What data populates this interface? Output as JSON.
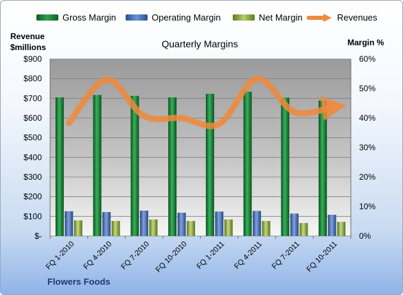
{
  "chart_data": {
    "type": "bar",
    "title": "Quarterly Margins",
    "footer": "Flowers Foods",
    "left_axis_title_line1": "Revenue",
    "left_axis_title_line2": "$millions",
    "right_axis_title": "Margin %",
    "categories": [
      "FQ 1-2010",
      "FQ 4-2010",
      "FQ 7-2010",
      "FQ 10-2010",
      "FQ 1-2011",
      "FQ 4-2011",
      "FQ 7-2011",
      "FQ 10-2011"
    ],
    "left_ticks": [
      "$-",
      "$100",
      "$200",
      "$300",
      "$400",
      "$500",
      "$600",
      "$700",
      "$800",
      "$900"
    ],
    "right_ticks": [
      "0%",
      "10%",
      "20%",
      "30%",
      "40%",
      "50%",
      "60%"
    ],
    "ylim_left": [
      0,
      900
    ],
    "ylim_right": [
      0,
      60
    ],
    "series": [
      {
        "name": "Gross Margin",
        "axis": "right",
        "type": "bar",
        "color": "#1e8a3c",
        "values": [
          47.0,
          47.8,
          47.5,
          47.0,
          48.2,
          48.9,
          46.9,
          45.9
        ]
      },
      {
        "name": "Operating Margin",
        "axis": "right",
        "type": "bar",
        "color": "#4a72b8",
        "values": [
          8.4,
          8.1,
          8.6,
          7.9,
          8.3,
          8.5,
          7.6,
          7.2
        ]
      },
      {
        "name": "Net Margin",
        "axis": "right",
        "type": "bar",
        "color": "#8fac46",
        "values": [
          5.3,
          5.1,
          5.6,
          5.1,
          5.6,
          5.1,
          4.4,
          4.8
        ]
      },
      {
        "name": "Revenues",
        "axis": "left",
        "type": "line",
        "color": "#f08a3c",
        "values": [
          575,
          795,
          610,
          600,
          570,
          800,
          630,
          655
        ]
      }
    ],
    "grid": true
  }
}
